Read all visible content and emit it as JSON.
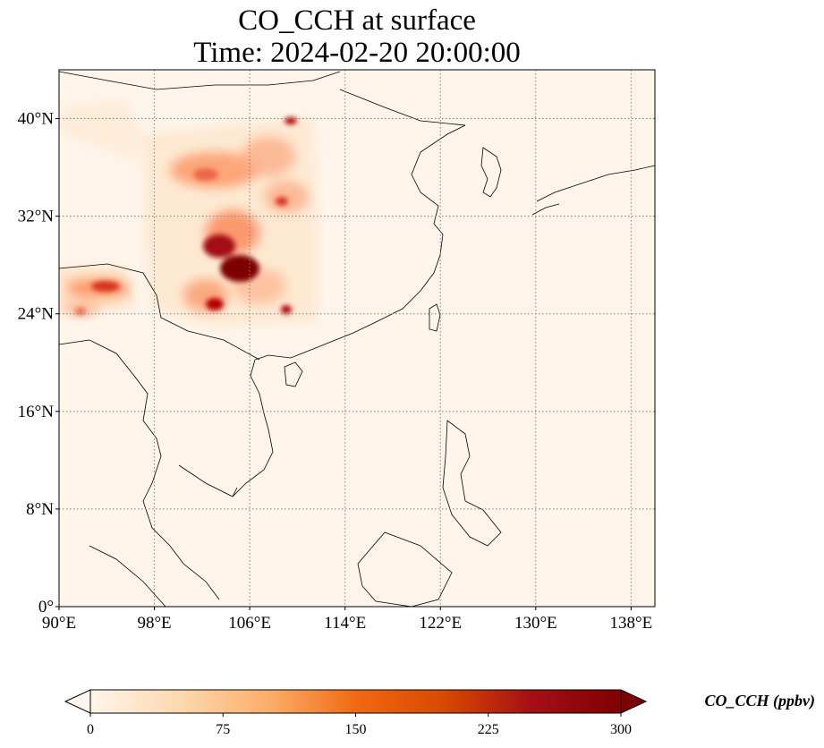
{
  "figure": {
    "title_line1": "CO_CCH at surface",
    "title_line2": "Time: 2024-02-20 20:00:00"
  },
  "map": {
    "lon_range": [
      90,
      140
    ],
    "lat_range": [
      0,
      44
    ],
    "lon_ticks": [
      {
        "value": 90,
        "label": "90°E"
      },
      {
        "value": 98,
        "label": "98°E"
      },
      {
        "value": 106,
        "label": "106°E"
      },
      {
        "value": 114,
        "label": "114°E"
      },
      {
        "value": 122,
        "label": "122°E"
      },
      {
        "value": 130,
        "label": "130°E"
      },
      {
        "value": 138,
        "label": "138°E"
      }
    ],
    "lat_ticks": [
      {
        "value": 0,
        "label": "0°"
      },
      {
        "value": 8,
        "label": "8°N"
      },
      {
        "value": 16,
        "label": "16°N"
      },
      {
        "value": 24,
        "label": "24°N"
      },
      {
        "value": 32,
        "label": "32°N"
      },
      {
        "value": 40,
        "label": "40°N"
      }
    ],
    "gridlines": true,
    "background_color": "#fff5eb"
  },
  "colorbar": {
    "label": "CO_CCH (ppbv)",
    "colormap": "OrRd",
    "min": 0,
    "max": 300,
    "ticks": [
      {
        "value": 0,
        "label": "0"
      },
      {
        "value": 75,
        "label": "75"
      },
      {
        "value": 150,
        "label": "150"
      },
      {
        "value": 225,
        "label": "225"
      },
      {
        "value": 300,
        "label": "300"
      }
    ],
    "extend": "both",
    "stops": [
      "#fff5eb",
      "#fdd9b0",
      "#fdae6b",
      "#f16913",
      "#d94801",
      "#a50f15",
      "#7f0000"
    ]
  }
}
